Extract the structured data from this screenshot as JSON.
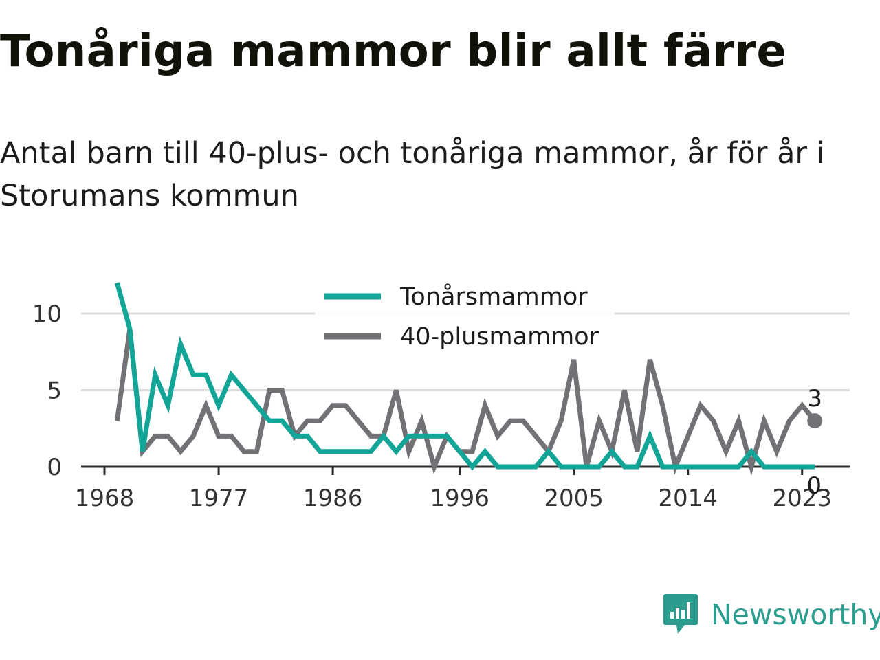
{
  "header": {
    "title": "Tonåriga mammor blir allt färre",
    "subtitle": "Antal barn till 40-plus- och tonåriga mammor, år för år i Storumans kommun"
  },
  "brand": {
    "name": "Newsworthy",
    "icon": "newsworthy-logo-icon",
    "color": "#2a9d8f"
  },
  "chart_data": {
    "type": "line",
    "title": "Tonåriga mammor blir allt färre",
    "subtitle": "Antal barn till 40-plus- och tonåriga mammor, år för år i Storumans kommun",
    "xlabel": "",
    "ylabel": "",
    "x": [
      1969,
      1970,
      1971,
      1972,
      1973,
      1974,
      1975,
      1976,
      1977,
      1978,
      1979,
      1980,
      1981,
      1982,
      1983,
      1984,
      1985,
      1986,
      1987,
      1988,
      1989,
      1990,
      1991,
      1992,
      1993,
      1994,
      1995,
      1996,
      1997,
      1998,
      1999,
      2000,
      2001,
      2002,
      2003,
      2004,
      2005,
      2006,
      2007,
      2008,
      2009,
      2010,
      2011,
      2012,
      2013,
      2014,
      2015,
      2016,
      2017,
      2018,
      2019,
      2020,
      2021,
      2022,
      2023,
      2024
    ],
    "xlim": [
      1968,
      2024
    ],
    "ylim": [
      0,
      12
    ],
    "x_ticks": [
      1968,
      1977,
      1986,
      1996,
      2005,
      2014,
      2023
    ],
    "y_ticks": [
      0,
      5,
      10
    ],
    "grid": "horizontal",
    "legend": "top-center",
    "series": [
      {
        "name": "Tonårsmammor",
        "color": "#12a598",
        "values": [
          12,
          9,
          1,
          6,
          4,
          8,
          6,
          6,
          4,
          6,
          5,
          4,
          3,
          3,
          2,
          2,
          1,
          1,
          1,
          1,
          1,
          2,
          1,
          2,
          2,
          2,
          2,
          1,
          0,
          1,
          0,
          0,
          0,
          0,
          1,
          0,
          0,
          0,
          0,
          1,
          0,
          0,
          2,
          0,
          0,
          0,
          0,
          0,
          0,
          0,
          1,
          0,
          0,
          0,
          0,
          0
        ],
        "end_value": "0"
      },
      {
        "name": "40-plusmammor",
        "color": "#717176",
        "values": [
          3,
          9,
          1,
          2,
          2,
          1,
          2,
          4,
          2,
          2,
          1,
          1,
          5,
          5,
          2,
          3,
          3,
          4,
          4,
          3,
          2,
          2,
          5,
          1,
          3,
          0,
          2,
          1,
          1,
          4,
          2,
          3,
          3,
          2,
          1,
          3,
          7,
          0,
          3,
          1,
          5,
          1,
          7,
          4,
          0,
          2,
          4,
          3,
          1,
          3,
          0,
          3,
          1,
          3,
          4,
          3
        ],
        "end_value": "3"
      }
    ]
  }
}
